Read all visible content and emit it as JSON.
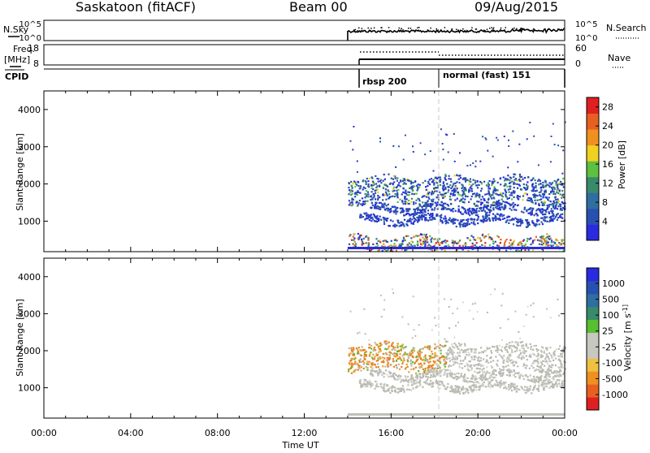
{
  "header": {
    "station": "Saskatoon (fitACF)",
    "beam": "Beam 00",
    "date": "09/Aug/2015"
  },
  "top_panels": {
    "nsky_label": "N.Sky",
    "nsky_ticks": [
      "10^5",
      "10^0"
    ],
    "nsearch_label": "N.Search",
    "freq_label": "Freq.",
    "freq_unit": "[MHz]",
    "freq_ticks": [
      "18",
      "8"
    ],
    "nave_label": "Nave",
    "nave_ticks": [
      "60",
      "0"
    ],
    "cpid_label": "CPID",
    "cpid_segments": [
      {
        "label": "rbsp 200",
        "start_hour": 14.0
      },
      {
        "label": "normal (fast) 151",
        "start_hour": 18.0
      }
    ]
  },
  "time_axis": {
    "title": "Time UT",
    "ticks": [
      "00:00",
      "04:00",
      "08:00",
      "12:00",
      "16:00",
      "20:00",
      "00:00"
    ]
  },
  "colors": {
    "power_scale": [
      "#2a2ae0",
      "#2850b0",
      "#2e6ea0",
      "#388a6a",
      "#5cc040",
      "#f0d020",
      "#f09020",
      "#e86020",
      "#e02020"
    ],
    "velocity_scale": [
      "#e02020",
      "#e86020",
      "#f09020",
      "#f0c040",
      "#c8c8c0",
      "#c8c8c0",
      "#58c030",
      "#388a6a",
      "#2e6ea0",
      "#2850b0",
      "#2a2ae0"
    ],
    "velocity_scatter": [
      "#b8b8b0",
      "#c0c0b8",
      "#a8a8a0",
      "#e88020",
      "#f0a030",
      "#58c030",
      "#d8d8d0"
    ]
  },
  "chart_data": [
    {
      "type": "heatmap",
      "title": "Power",
      "xlabel": "Time UT",
      "ylabel": "Slant Range [km]",
      "xlim_hours": [
        0,
        24
      ],
      "ylim_km": [
        180,
        4500
      ],
      "yticks": [
        "1000",
        "2000",
        "3000",
        "4000"
      ],
      "colorbar_label": "Power [dB]",
      "colorbar_ticks": [
        "4",
        "8",
        "12",
        "16",
        "20",
        "24",
        "28"
      ],
      "colorbar_range": [
        0,
        30
      ],
      "data_start_hour": 14.0,
      "echo_bands_km": [
        {
          "range_km": [
            1500,
            2200
          ],
          "hours": [
            14.0,
            24.0
          ],
          "typical_db": "4-16"
        },
        {
          "range_km": [
            1250,
            1450
          ],
          "hours": [
            15.0,
            24.0
          ],
          "typical_db": "4-10"
        },
        {
          "range_km": [
            950,
            1150
          ],
          "hours": [
            14.5,
            24.0
          ],
          "typical_db": "4-8"
        },
        {
          "range_km": [
            200,
            600
          ],
          "hours": [
            14.0,
            24.0
          ],
          "typical_db": "4-30"
        }
      ]
    },
    {
      "type": "heatmap",
      "title": "Velocity",
      "xlabel": "Time UT",
      "ylabel": "Slant Range [km]",
      "xlim_hours": [
        0,
        24
      ],
      "ylim_km": [
        180,
        4500
      ],
      "yticks": [
        "1000",
        "2000",
        "3000",
        "4000"
      ],
      "colorbar_label": "Velocity [m s^-1]",
      "colorbar_ticks": [
        "1000",
        "500",
        "100",
        "25",
        "-25",
        "-100",
        "-500",
        "-1000"
      ],
      "data_start_hour": 14.0,
      "echo_bands_km": [
        {
          "range_km": [
            1500,
            2200
          ],
          "hours": [
            14.0,
            24.0
          ],
          "typical_ms": "-25 to -500"
        },
        {
          "range_km": [
            1250,
            1450
          ],
          "hours": [
            15.0,
            24.0
          ],
          "typical_ms": "-25 to 25"
        },
        {
          "range_km": [
            950,
            1150
          ],
          "hours": [
            14.5,
            24.0
          ],
          "typical_ms": "-25 to 25"
        }
      ]
    }
  ]
}
